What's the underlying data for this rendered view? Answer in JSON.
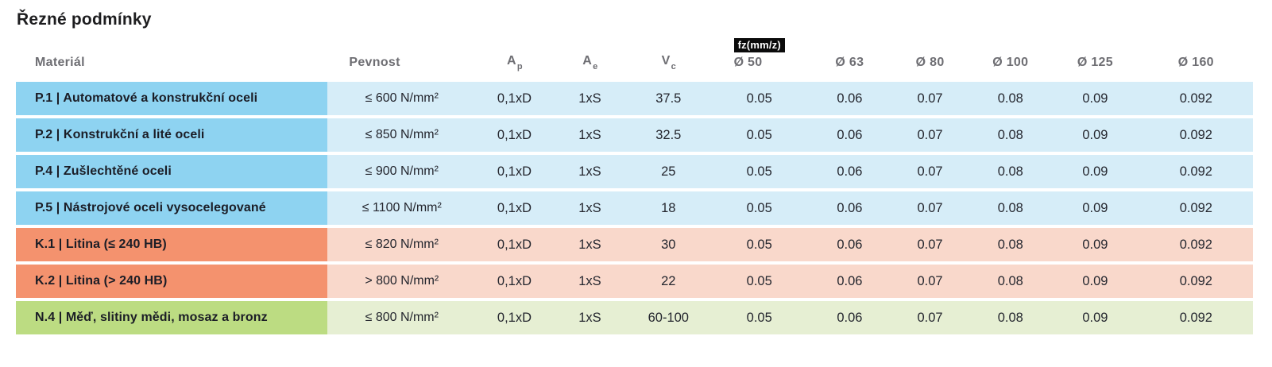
{
  "page": {
    "title": "Řezné podmínky"
  },
  "colors": {
    "p_dark": "#8ed3f1",
    "p_light": "#d6edf8",
    "k_dark": "#f4926e",
    "k_light": "#f9d8cb",
    "n_dark": "#bcdc82",
    "n_light": "#e6efd3"
  },
  "table": {
    "columns": [
      {
        "key": "material",
        "label": "Materiál",
        "width": "25.2%"
      },
      {
        "key": "pevnost",
        "label": "Pevnost",
        "width": "12.0%"
      },
      {
        "key": "ap",
        "label": "A",
        "sub": "p",
        "width": "6.2%"
      },
      {
        "key": "ae",
        "label": "A",
        "sub": "e",
        "width": "6.0%"
      },
      {
        "key": "vc",
        "label": "V",
        "sub": "c",
        "width": "6.7%"
      },
      {
        "key": "d50",
        "label": "Ø 50",
        "badge": "fz(mm/z)",
        "width": "8.0%"
      },
      {
        "key": "d63",
        "label": "Ø 63",
        "width": "6.6%"
      },
      {
        "key": "d80",
        "label": "Ø 80",
        "width": "6.4%"
      },
      {
        "key": "d100",
        "label": "Ø 100",
        "width": "6.6%"
      },
      {
        "key": "d125",
        "label": "Ø 125",
        "width": "7.1%"
      },
      {
        "key": "d160",
        "label": "Ø 160",
        "width": "9.2%"
      }
    ],
    "rows": [
      {
        "group": "p",
        "material": "P.1 | Automatové a konstrukční oceli",
        "pevnost": "≤ 600 N/mm²",
        "ap": "0,1xD",
        "ae": "1xS",
        "vc": "37.5",
        "d50": "0.05",
        "d63": "0.06",
        "d80": "0.07",
        "d100": "0.08",
        "d125": "0.09",
        "d160": "0.092"
      },
      {
        "group": "p",
        "material": "P.2 | Konstrukční a lité oceli",
        "pevnost": "≤ 850 N/mm²",
        "ap": "0,1xD",
        "ae": "1xS",
        "vc": "32.5",
        "d50": "0.05",
        "d63": "0.06",
        "d80": "0.07",
        "d100": "0.08",
        "d125": "0.09",
        "d160": "0.092"
      },
      {
        "group": "p",
        "material": "P.4 | Zušlechtěné oceli",
        "pevnost": "≤ 900 N/mm²",
        "ap": "0,1xD",
        "ae": "1xS",
        "vc": "25",
        "d50": "0.05",
        "d63": "0.06",
        "d80": "0.07",
        "d100": "0.08",
        "d125": "0.09",
        "d160": "0.092"
      },
      {
        "group": "p",
        "material": "P.5 | Nástrojové oceli vysocelegované",
        "pevnost": "≤ 1100 N/mm²",
        "ap": "0,1xD",
        "ae": "1xS",
        "vc": "18",
        "d50": "0.05",
        "d63": "0.06",
        "d80": "0.07",
        "d100": "0.08",
        "d125": "0.09",
        "d160": "0.092"
      },
      {
        "group": "k",
        "material": "K.1 | Litina (≤ 240 HB)",
        "pevnost": "≤ 820 N/mm²",
        "ap": "0,1xD",
        "ae": "1xS",
        "vc": "30",
        "d50": "0.05",
        "d63": "0.06",
        "d80": "0.07",
        "d100": "0.08",
        "d125": "0.09",
        "d160": "0.092"
      },
      {
        "group": "k",
        "material": "K.2 | Litina (> 240 HB)",
        "pevnost": "> 800 N/mm²",
        "ap": "0,1xD",
        "ae": "1xS",
        "vc": "22",
        "d50": "0.05",
        "d63": "0.06",
        "d80": "0.07",
        "d100": "0.08",
        "d125": "0.09",
        "d160": "0.092"
      },
      {
        "group": "n",
        "material": "N.4 | Měď, slitiny mědi, mosaz a bronz",
        "pevnost": "≤ 800 N/mm²",
        "ap": "0,1xD",
        "ae": "1xS",
        "vc": "60-100",
        "d50": "0.05",
        "d63": "0.06",
        "d80": "0.07",
        "d100": "0.08",
        "d125": "0.09",
        "d160": "0.092"
      }
    ]
  }
}
